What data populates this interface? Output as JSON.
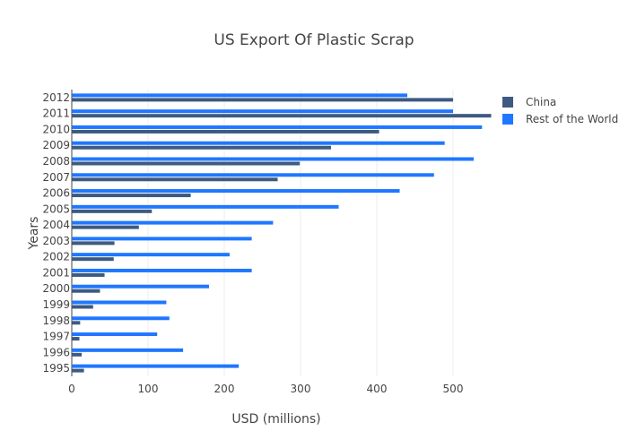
{
  "chart_data": {
    "type": "bar",
    "orientation": "horizontal",
    "title": "US Export Of Plastic Scrap",
    "xlabel": "USD (millions)",
    "ylabel": "Years",
    "xlim": [
      0,
      560
    ],
    "x_ticks": [
      0,
      100,
      200,
      300,
      400,
      500
    ],
    "grid": true,
    "legend_position": "top-right",
    "categories": [
      "1995",
      "1996",
      "1997",
      "1998",
      "1999",
      "2000",
      "2001",
      "2002",
      "2003",
      "2004",
      "2005",
      "2006",
      "2007",
      "2008",
      "2009",
      "2010",
      "2011",
      "2012"
    ],
    "series": [
      {
        "name": "China",
        "color": "#3d5a80",
        "values": [
          16,
          13,
          10,
          11,
          28,
          37,
          43,
          55,
          56,
          88,
          105,
          156,
          270,
          299,
          340,
          403,
          550,
          500
        ]
      },
      {
        "name": "Rest of the World",
        "color": "#1f77ff",
        "values": [
          219,
          146,
          112,
          128,
          124,
          180,
          236,
          207,
          236,
          264,
          350,
          430,
          475,
          527,
          489,
          538,
          500,
          440
        ]
      }
    ]
  }
}
